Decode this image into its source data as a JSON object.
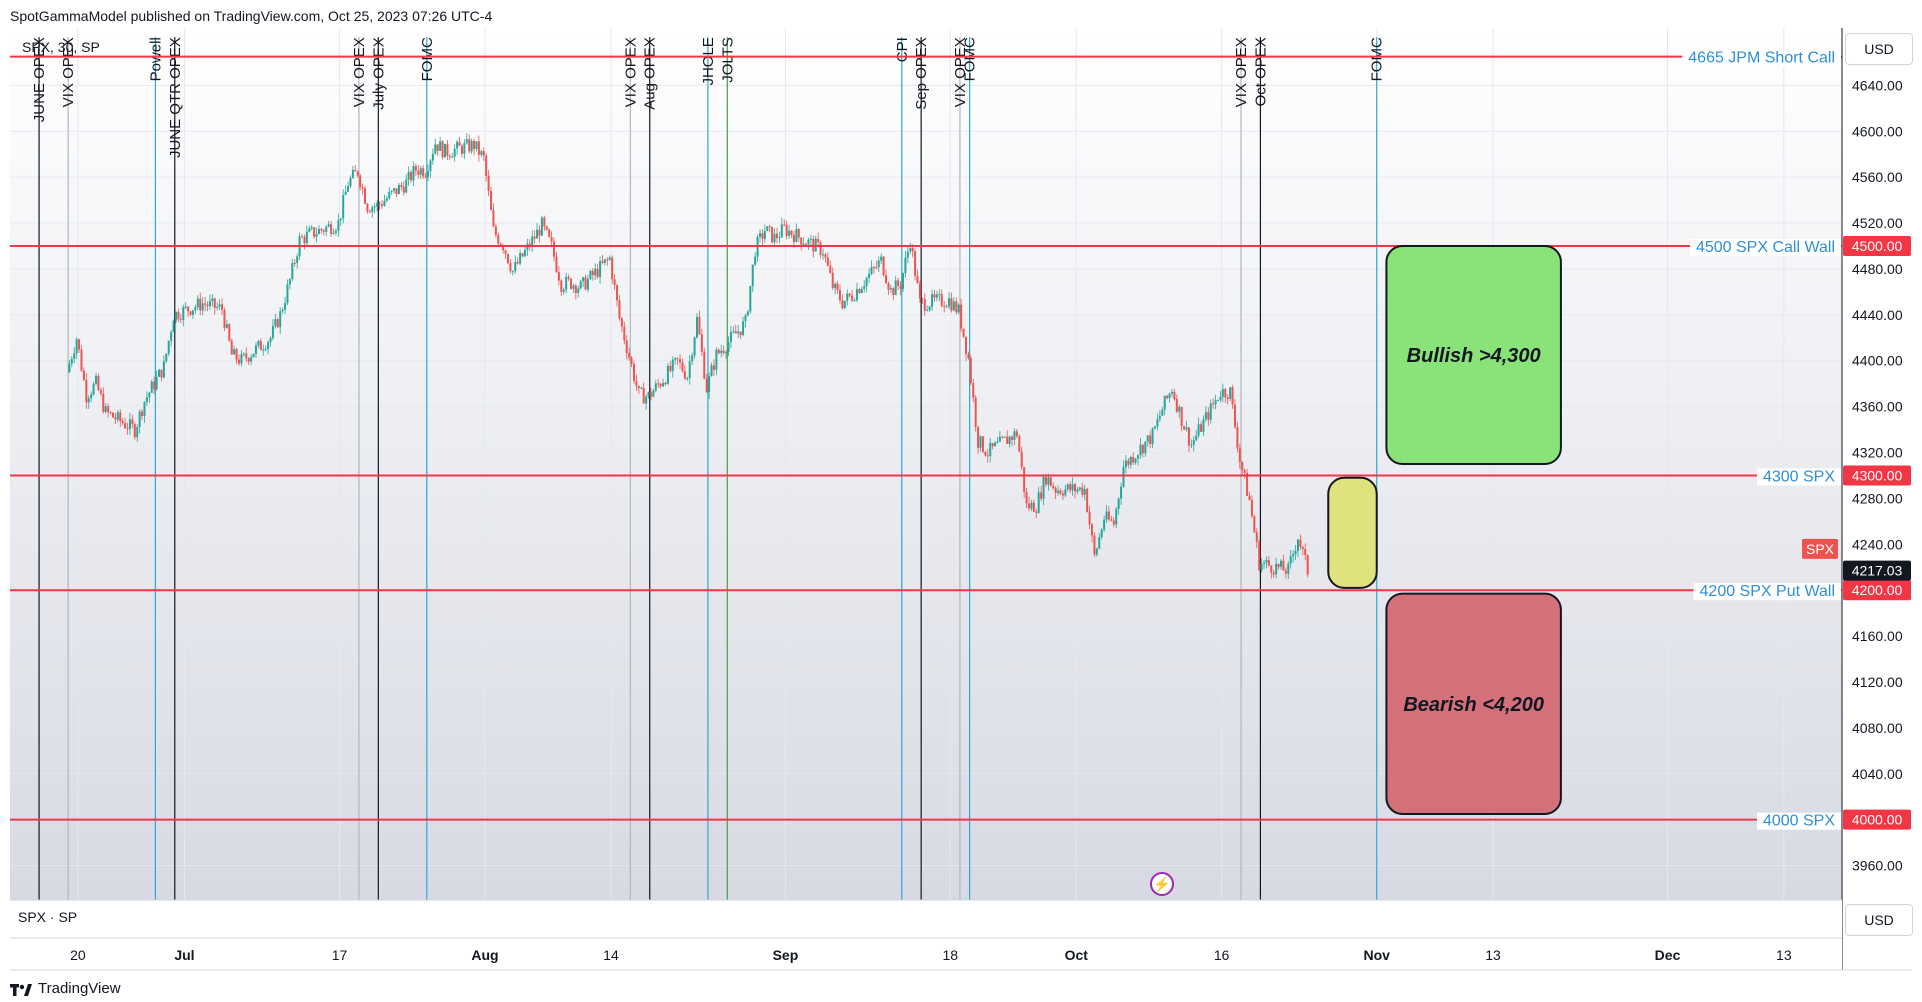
{
  "header": {
    "published": "SpotGammaModel published on TradingView.com, Oct 25, 2023 07:26 UTC-4"
  },
  "symbol_label": "SPX, 30, SP",
  "pane_label": "SPX · SP",
  "currency": {
    "top": "USD",
    "bottom": "USD"
  },
  "footer": {
    "brand": "TradingView"
  },
  "colors": {
    "level_line": "#f23645",
    "level_text": "#2e8fd8",
    "bull_box": "#8ae378",
    "bear_box": "#d4707a",
    "neutral_box": "#e0e27e",
    "candle_up": "#26a69a",
    "candle_down": "#ef5350"
  },
  "chart_data": {
    "type": "candlestick",
    "title": "",
    "ylim": [
      3930,
      4690
    ],
    "y_ticks": [
      3960,
      4000,
      4040,
      4080,
      4120,
      4160,
      4200,
      4240,
      4280,
      4320,
      4360,
      4400,
      4440,
      4480,
      4520,
      4560,
      4600,
      4640
    ],
    "y_tick_labels": [
      "3960.00",
      "4000.00",
      "4040.00",
      "4080.00",
      "4120.00",
      "4160.00",
      "4200.00",
      "4240.00",
      "4280.00",
      "4320.00",
      "4360.00",
      "4400.00",
      "4440.00",
      "4480.00",
      "4520.00",
      "4560.00",
      "4600.00",
      "4640.00"
    ],
    "x_ticks": [
      {
        "date": "2023-06-20",
        "label": "20"
      },
      {
        "date": "2023-07-01",
        "label": "Jul"
      },
      {
        "date": "2023-07-17",
        "label": "17"
      },
      {
        "date": "2023-08-01",
        "label": "Aug"
      },
      {
        "date": "2023-08-14",
        "label": "14"
      },
      {
        "date": "2023-09-01",
        "label": "Sep"
      },
      {
        "date": "2023-09-18",
        "label": "18"
      },
      {
        "date": "2023-10-01",
        "label": "Oct"
      },
      {
        "date": "2023-10-16",
        "label": "16"
      },
      {
        "date": "2023-11-01",
        "label": "Nov"
      },
      {
        "date": "2023-11-13",
        "label": "13"
      },
      {
        "date": "2023-12-01",
        "label": "Dec"
      },
      {
        "date": "2023-12-13",
        "label": "13"
      }
    ],
    "price_path": [
      [
        "2023-06-19",
        4390
      ],
      [
        "2023-06-20",
        4420
      ],
      [
        "2023-06-21",
        4370
      ],
      [
        "2023-06-22",
        4380
      ],
      [
        "2023-06-23",
        4355
      ],
      [
        "2023-06-26",
        4340
      ],
      [
        "2023-06-27",
        4365
      ],
      [
        "2023-06-28",
        4380
      ],
      [
        "2023-06-29",
        4395
      ],
      [
        "2023-06-30",
        4440
      ],
      [
        "2023-07-03",
        4450
      ],
      [
        "2023-07-05",
        4445
      ],
      [
        "2023-07-06",
        4405
      ],
      [
        "2023-07-07",
        4400
      ],
      [
        "2023-07-10",
        4420
      ],
      [
        "2023-07-11",
        4440
      ],
      [
        "2023-07-12",
        4470
      ],
      [
        "2023-07-13",
        4505
      ],
      [
        "2023-07-14",
        4510
      ],
      [
        "2023-07-17",
        4520
      ],
      [
        "2023-07-18",
        4555
      ],
      [
        "2023-07-19",
        4565
      ],
      [
        "2023-07-20",
        4535
      ],
      [
        "2023-07-21",
        4535
      ],
      [
        "2023-07-24",
        4555
      ],
      [
        "2023-07-25",
        4567
      ],
      [
        "2023-07-26",
        4566
      ],
      [
        "2023-07-27",
        4590
      ],
      [
        "2023-07-28",
        4582
      ],
      [
        "2023-07-31",
        4588
      ],
      [
        "2023-08-01",
        4576
      ],
      [
        "2023-08-02",
        4513
      ],
      [
        "2023-08-03",
        4501
      ],
      [
        "2023-08-04",
        4478
      ],
      [
        "2023-08-07",
        4518
      ],
      [
        "2023-08-08",
        4499
      ],
      [
        "2023-08-09",
        4467
      ],
      [
        "2023-08-10",
        4468
      ],
      [
        "2023-08-11",
        4464
      ],
      [
        "2023-08-14",
        4489
      ],
      [
        "2023-08-15",
        4437
      ],
      [
        "2023-08-16",
        4404
      ],
      [
        "2023-08-17",
        4370
      ],
      [
        "2023-08-18",
        4369
      ],
      [
        "2023-08-21",
        4399
      ],
      [
        "2023-08-22",
        4387
      ],
      [
        "2023-08-23",
        4436
      ],
      [
        "2023-08-24",
        4376
      ],
      [
        "2023-08-25",
        4405
      ],
      [
        "2023-08-28",
        4433
      ],
      [
        "2023-08-29",
        4497
      ],
      [
        "2023-08-30",
        4514
      ],
      [
        "2023-08-31",
        4507
      ],
      [
        "2023-09-01",
        4515
      ],
      [
        "2023-09-05",
        4496
      ],
      [
        "2023-09-06",
        4465
      ],
      [
        "2023-09-07",
        4451
      ],
      [
        "2023-09-08",
        4457
      ],
      [
        "2023-09-11",
        4487
      ],
      [
        "2023-09-12",
        4461
      ],
      [
        "2023-09-13",
        4467
      ],
      [
        "2023-09-14",
        4505
      ],
      [
        "2023-09-15",
        4450
      ],
      [
        "2023-09-18",
        4453
      ],
      [
        "2023-09-19",
        4443
      ],
      [
        "2023-09-20",
        4402
      ],
      [
        "2023-09-21",
        4330
      ],
      [
        "2023-09-22",
        4320
      ],
      [
        "2023-09-25",
        4337
      ],
      [
        "2023-09-26",
        4273
      ],
      [
        "2023-09-27",
        4274
      ],
      [
        "2023-09-28",
        4299
      ],
      [
        "2023-09-29",
        4288
      ],
      [
        "2023-10-02",
        4288
      ],
      [
        "2023-10-03",
        4229
      ],
      [
        "2023-10-04",
        4263
      ],
      [
        "2023-10-05",
        4258
      ],
      [
        "2023-10-06",
        4308
      ],
      [
        "2023-10-09",
        4335
      ],
      [
        "2023-10-10",
        4358
      ],
      [
        "2023-10-11",
        4376
      ],
      [
        "2023-10-12",
        4349
      ],
      [
        "2023-10-13",
        4327
      ],
      [
        "2023-10-16",
        4373
      ],
      [
        "2023-10-17",
        4373
      ],
      [
        "2023-10-18",
        4314
      ],
      [
        "2023-10-19",
        4278
      ],
      [
        "2023-10-20",
        4224
      ],
      [
        "2023-10-23",
        4217
      ],
      [
        "2023-10-24",
        4247
      ],
      [
        "2023-10-25",
        4217
      ]
    ],
    "levels": [
      {
        "value": 4665,
        "label": "4665 JPM Short Call",
        "tag": ""
      },
      {
        "value": 4500,
        "label": "4500 SPX Call Wall",
        "tag": "4500.00"
      },
      {
        "value": 4300,
        "label": "4300 SPX",
        "tag": "4300.00"
      },
      {
        "value": 4200,
        "label": "4200 SPX Put Wall",
        "tag": "4200.00"
      },
      {
        "value": 4000,
        "label": "4000 SPX",
        "tag": "4000.00"
      }
    ],
    "last_price": {
      "value": 4217.03,
      "label": "4217.03"
    },
    "symbol_tag": {
      "value": 4236,
      "label": "SPX"
    },
    "events": [
      {
        "date": "2023-06-16",
        "label": "JUNE OPEX",
        "color": "#131722",
        "label_y": 4682
      },
      {
        "date": "2023-06-19",
        "label": "VIX OPEX",
        "color": "#b2b5be",
        "label_y": 4682
      },
      {
        "date": "2023-06-28",
        "label": "Powell",
        "color": "#2ea8d0",
        "label_y": 4682
      },
      {
        "date": "2023-06-30",
        "label": "JUNE QTR OPEX",
        "color": "#131722",
        "label_y": 4682
      },
      {
        "date": "2023-07-19",
        "label": "VIX OPEX",
        "color": "#b2b5be",
        "label_y": 4682
      },
      {
        "date": "2023-07-21",
        "label": "July OPEX",
        "color": "#131722",
        "label_y": 4682
      },
      {
        "date": "2023-07-26",
        "label": "FOMC",
        "color": "#2ea8d0",
        "label_y": 4682
      },
      {
        "date": "2023-08-16",
        "label": "VIX OPEX",
        "color": "#b2b5be",
        "label_y": 4682
      },
      {
        "date": "2023-08-18",
        "label": "Aug OPEX",
        "color": "#131722",
        "label_y": 4682
      },
      {
        "date": "2023-08-24",
        "label": "JHOLE",
        "color": "#2ea8d0",
        "label_y": 4682
      },
      {
        "date": "2023-08-26",
        "label": "JOLTS",
        "color": "#43a047",
        "label_y": 4682
      },
      {
        "date": "2023-09-13",
        "label": "CPI",
        "color": "#2ea8d0",
        "label_y": 4682
      },
      {
        "date": "2023-09-15",
        "label": "Sep OPEX",
        "color": "#131722",
        "label_y": 4682
      },
      {
        "date": "2023-09-19",
        "label": "VIX OPEX",
        "color": "#b2b5be",
        "label_y": 4682
      },
      {
        "date": "2023-09-20",
        "label": "FOMC",
        "color": "#2ea8d0",
        "label_y": 4682
      },
      {
        "date": "2023-10-18",
        "label": "VIX OPEX",
        "color": "#b2b5be",
        "label_y": 4682
      },
      {
        "date": "2023-10-20",
        "label": "Oct OPEX",
        "color": "#131722",
        "label_y": 4682
      },
      {
        "date": "2023-11-01",
        "label": "FOMC",
        "color": "#2ea8d0",
        "label_y": 4682
      }
    ],
    "annotations": [
      {
        "type": "box",
        "label": "Bullish >4,300",
        "from": "2023-11-02",
        "to": "2023-11-20",
        "y_low": 4310,
        "y_high": 4500,
        "color": "#8ae378"
      },
      {
        "type": "box",
        "label": "",
        "from": "2023-10-27",
        "to": "2023-11-01",
        "y_low": 4202,
        "y_high": 4298,
        "color": "#e0e27e"
      },
      {
        "type": "box",
        "label": "Bearish <4,200",
        "from": "2023-11-02",
        "to": "2023-11-20",
        "y_low": 4005,
        "y_high": 4197,
        "color": "#d4707a"
      }
    ]
  }
}
